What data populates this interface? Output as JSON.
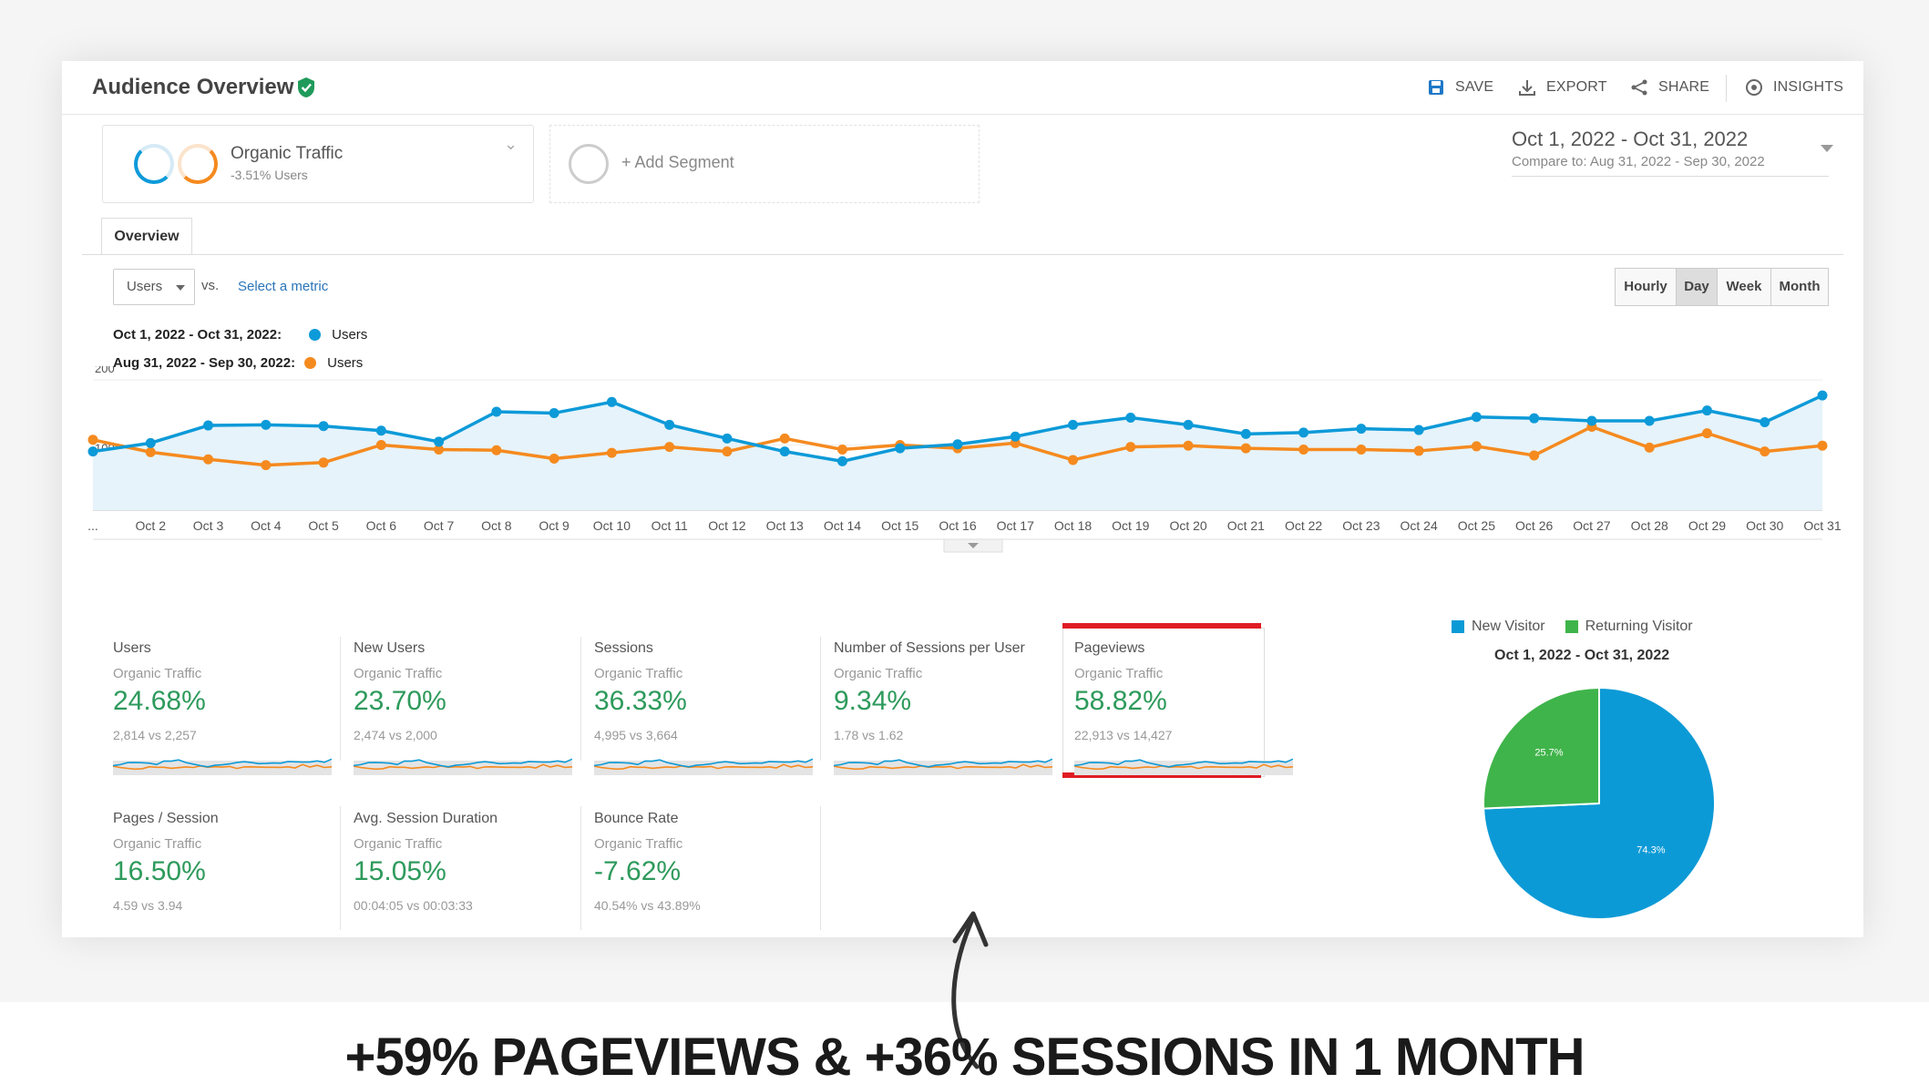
{
  "header": {
    "title": "Audience Overview",
    "actions": [
      {
        "label": "SAVE",
        "icon": "save-icon"
      },
      {
        "label": "EXPORT",
        "icon": "export-icon"
      },
      {
        "label": "SHARE",
        "icon": "share-icon"
      },
      {
        "label": "INSIGHTS",
        "icon": "insights-icon"
      }
    ]
  },
  "segment": {
    "name": "Organic Traffic",
    "sub": "-3.51% Users",
    "add_label": "+ Add Segment"
  },
  "date_range": {
    "main": "Oct 1, 2022 - Oct 31, 2022",
    "compare": "Compare to: Aug 31, 2022 - Sep 30, 2022"
  },
  "tabs": {
    "overview": "Overview"
  },
  "controls": {
    "metric": "Users",
    "vs": "vs.",
    "select_metric": "Select a metric",
    "granularity": [
      "Hourly",
      "Day",
      "Week",
      "Month"
    ],
    "active_granularity": "Day"
  },
  "legend": {
    "current_range": "Oct 1, 2022 - Oct 31, 2022:",
    "previous_range": "Aug 31, 2022 - Sep 30, 2022:",
    "current_series": "Users",
    "previous_series": "Users",
    "current_color": "#0d9ad8",
    "previous_color": "#f58a1f"
  },
  "chart_data": {
    "type": "line",
    "x": [
      "...",
      "Oct 2",
      "Oct 3",
      "Oct 4",
      "Oct 5",
      "Oct 6",
      "Oct 7",
      "Oct 8",
      "Oct 9",
      "Oct 10",
      "Oct 11",
      "Oct 12",
      "Oct 13",
      "Oct 14",
      "Oct 15",
      "Oct 16",
      "Oct 17",
      "Oct 18",
      "Oct 19",
      "Oct 20",
      "Oct 21",
      "Oct 22",
      "Oct 23",
      "Oct 24",
      "Oct 25",
      "Oct 26",
      "Oct 27",
      "Oct 28",
      "Oct 29",
      "Oct 30",
      "Oct 31"
    ],
    "yticks": [
      "200",
      "100"
    ],
    "ylim": [
      0,
      200
    ],
    "series": [
      {
        "name": "Users",
        "color": "#0d9ad8",
        "values": [
          90,
          103,
          130,
          131,
          129,
          122,
          105,
          151,
          149,
          166,
          131,
          110,
          90,
          75,
          95,
          101,
          113,
          131,
          142,
          131,
          117,
          119,
          125,
          123,
          143,
          141,
          137,
          137,
          153,
          135,
          176
        ]
      },
      {
        "name": "Users",
        "color": "#f58a1f",
        "values": [
          108,
          89,
          78,
          69,
          73,
          100,
          93,
          92,
          79,
          88,
          97,
          90,
          110,
          93,
          100,
          95,
          103,
          77,
          97,
          99,
          95,
          93,
          93,
          91,
          98,
          84,
          128,
          96,
          118,
          90,
          99
        ]
      }
    ],
    "grid": true
  },
  "metrics": [
    {
      "name": "Users",
      "segment": "Organic Traffic",
      "value": "24.68%",
      "compare": "2,814 vs 2,257"
    },
    {
      "name": "New Users",
      "segment": "Organic Traffic",
      "value": "23.70%",
      "compare": "2,474 vs 2,000"
    },
    {
      "name": "Sessions",
      "segment": "Organic Traffic",
      "value": "36.33%",
      "compare": "4,995 vs 3,664"
    },
    {
      "name": "Number of Sessions per User",
      "segment": "Organic Traffic",
      "value": "9.34%",
      "compare": "1.78 vs 1.62"
    },
    {
      "name": "Pageviews",
      "segment": "Organic Traffic",
      "value": "58.82%",
      "compare": "22,913 vs 14,427"
    },
    {
      "name": "Pages / Session",
      "segment": "Organic Traffic",
      "value": "16.50%",
      "compare": "4.59 vs 3.94"
    },
    {
      "name": "Avg. Session Duration",
      "segment": "Organic Traffic",
      "value": "15.05%",
      "compare": "00:04:05 vs 00:03:33"
    },
    {
      "name": "Bounce Rate",
      "segment": "Organic Traffic",
      "value": "-7.62%",
      "compare": "40.54% vs 43.89%"
    }
  ],
  "pie": {
    "legend_new": "New Visitor",
    "legend_returning": "Returning Visitor",
    "title": "Oct 1, 2022 - Oct 31, 2022",
    "new_color": "#0c9ad6",
    "returning_color": "#3fb44a",
    "slices": [
      {
        "name": "New Visitor",
        "value": 74.3,
        "label": "74.3%"
      },
      {
        "name": "Returning Visitor",
        "value": 25.7,
        "label": "25.7%"
      }
    ]
  },
  "headline": "+59% PAGEVIEWS & +36% SESSIONS IN 1 MONTH"
}
